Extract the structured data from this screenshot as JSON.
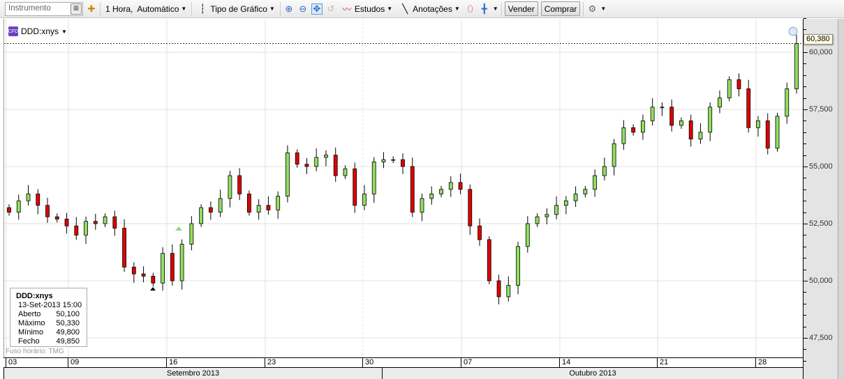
{
  "toolbar": {
    "instrument_placeholder": "Instrumento",
    "interval": "1 Hora,  Automático",
    "chart_type": "Tipo de Gráfico",
    "studies": "Estudos",
    "annotations": "Anotações",
    "sell": "Vender",
    "buy": "Comprar"
  },
  "symbol": "DDD:xnys",
  "info": {
    "symbol": "DDD:xnys",
    "datetime": "13-Set-2013 15:00",
    "rows": [
      {
        "label": "Aberto",
        "value": "50,100"
      },
      {
        "label": "Máximo",
        "value": "50,330"
      },
      {
        "label": "Mínimo",
        "value": "49,800"
      },
      {
        "label": "Fecho",
        "value": "49,850"
      }
    ]
  },
  "timezone": "Fuso horário: TMG",
  "current_price": "60,380",
  "y_ticks": [
    "60,000",
    "57,500",
    "55,000",
    "52,500",
    "50,000",
    "47,500"
  ],
  "dates": [
    "03",
    "09",
    "16",
    "23",
    "30",
    "07",
    "14",
    "21",
    "28"
  ],
  "months": [
    "Setembro 2013",
    "Outubro 2013"
  ],
  "colors": {
    "up": "#90e060",
    "down": "#e00000",
    "price_line": "#cc0000"
  },
  "chart_data": {
    "type": "candlestick",
    "ylim": [
      46500,
      61500
    ],
    "closes": [
      53000,
      53500,
      53800,
      53300,
      52800,
      52700,
      52400,
      52000,
      52600,
      52500,
      52800,
      52300,
      50600,
      50300,
      50200,
      49900,
      51200,
      50000,
      51600,
      52500,
      53200,
      53000,
      53600,
      54600,
      53800,
      53000,
      53300,
      53100,
      53700,
      55600,
      55100,
      55000,
      55400,
      55500,
      54600,
      54900,
      53300,
      53800,
      55200,
      55300,
      55300,
      55000,
      53000,
      53600,
      53800,
      54000,
      54300,
      54000,
      52400,
      51800,
      50000,
      49300,
      49800,
      51500,
      52500,
      52800,
      52900,
      53300,
      53500,
      53800,
      54000,
      54600,
      55000,
      56000,
      56700,
      56500,
      57000,
      57600,
      57600,
      56800,
      57000,
      56200,
      56500,
      57600,
      58000,
      58800,
      58400,
      56700,
      57000,
      55800,
      57200,
      58400,
      60380
    ]
  }
}
